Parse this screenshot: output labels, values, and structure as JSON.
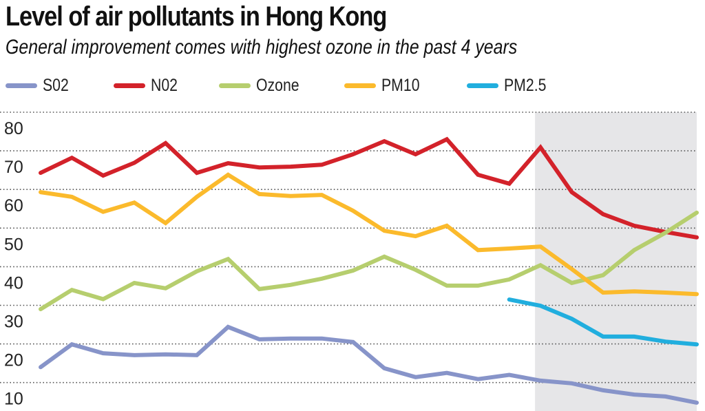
{
  "chart_data": {
    "type": "line",
    "title": "Level of air pollutants in Hong Kong",
    "subtitle": "General improvement comes with highest ozone in the past 4 years",
    "xlabel": "",
    "ylabel": "",
    "ylim": [
      0,
      80
    ],
    "yticks": [
      80,
      70,
      60,
      50,
      40,
      30,
      20,
      10
    ],
    "ytick_labels": [
      "80",
      "70",
      "60",
      "50",
      "40",
      "30",
      "20",
      "10"
    ],
    "grid": true,
    "legend_position": "top-left",
    "x": [
      1,
      2,
      3,
      4,
      5,
      6,
      7,
      8,
      9,
      10,
      11,
      12,
      13,
      14,
      15,
      16,
      17,
      18,
      19,
      20,
      21,
      22
    ],
    "highlight_region_from_index": 16,
    "series": [
      {
        "name": "S02",
        "color": "#8794c9",
        "values": [
          14.0,
          19.9,
          17.6,
          17.1,
          17.3,
          17.1,
          24.4,
          21.2,
          21.4,
          21.4,
          20.5,
          13.7,
          11.4,
          12.5,
          10.9,
          12.0,
          10.5,
          9.8,
          8.0,
          6.9,
          6.4,
          4.8
        ]
      },
      {
        "name": "N02",
        "color": "#d3222a",
        "values": [
          64.3,
          68.2,
          63.6,
          66.9,
          72.0,
          64.3,
          66.8,
          65.7,
          65.9,
          66.4,
          69.1,
          72.5,
          69.1,
          73.0,
          63.8,
          61.5,
          70.9,
          59.3,
          53.6,
          50.6,
          49.0,
          47.6
        ]
      },
      {
        "name": "Ozone",
        "color": "#b6ce6e",
        "values": [
          29.0,
          34.0,
          31.6,
          35.8,
          34.4,
          38.8,
          42.0,
          34.2,
          35.3,
          36.9,
          39.0,
          42.6,
          39.2,
          35.1,
          35.1,
          36.7,
          40.4,
          35.8,
          37.8,
          44.3,
          48.8,
          54.0
        ]
      },
      {
        "name": "PM10",
        "color": "#fbba2c",
        "values": [
          59.3,
          58.1,
          54.2,
          56.6,
          51.3,
          58.1,
          63.8,
          58.8,
          58.3,
          58.6,
          54.5,
          49.3,
          47.9,
          50.6,
          44.3,
          44.7,
          45.2,
          39.4,
          33.3,
          33.6,
          33.3,
          32.9
        ]
      },
      {
        "name": "PM2.5",
        "color": "#21aede",
        "values": [
          null,
          null,
          null,
          null,
          null,
          null,
          null,
          null,
          null,
          null,
          null,
          null,
          null,
          null,
          null,
          31.5,
          29.9,
          26.5,
          21.9,
          21.9,
          20.6,
          19.9
        ]
      }
    ]
  }
}
